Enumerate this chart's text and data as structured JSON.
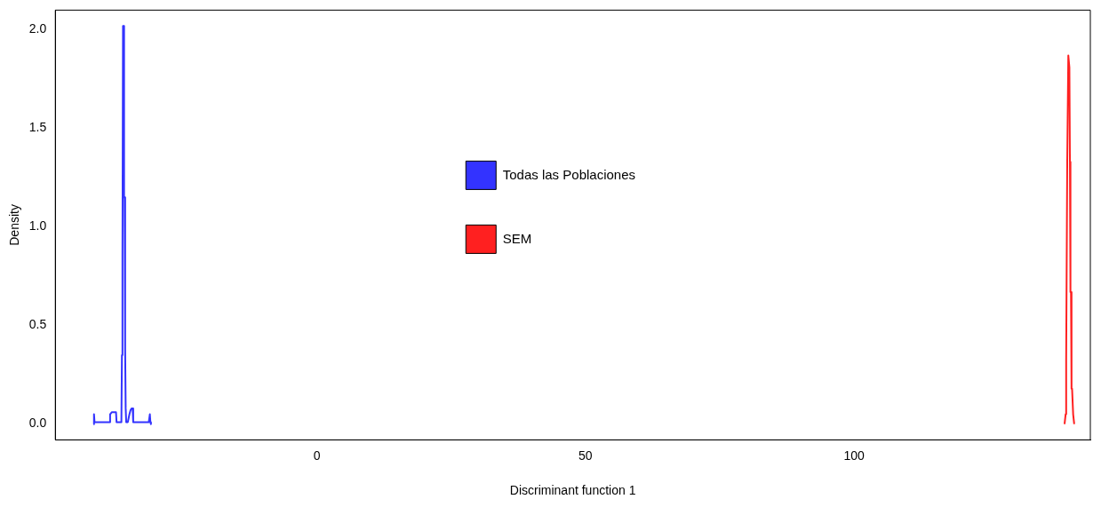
{
  "chart_data": {
    "type": "line",
    "xlabel": "Discriminant function 1",
    "ylabel": "Density",
    "xlim": [
      -48.7,
      144
    ],
    "xticks": [
      0,
      50,
      100
    ],
    "ylim": [
      -0.08,
      2.1
    ],
    "yticks": [
      {
        "value": 0,
        "label": "0.0"
      },
      {
        "value": 0.5,
        "label": "0.5"
      },
      {
        "value": 1,
        "label": "1.0"
      },
      {
        "value": 1.5,
        "label": "1.5"
      },
      {
        "value": 2,
        "label": "2.0"
      }
    ],
    "grid": false,
    "legend": "top",
    "marker": "none",
    "line_style": "solid",
    "series": [
      {
        "name": "Todas las Poblaciones",
        "color": "#3333ff",
        "x": [
          -41.6,
          -41.5,
          -41.4,
          -41.3,
          -38.6,
          -38.5,
          -38.2,
          -37.9,
          -37.6,
          -37.4,
          -37.3,
          -36.4,
          -36.3,
          -36.2,
          -36.1,
          -36.0,
          -35.9,
          -35.8,
          -35.7,
          -35.6,
          -35.5,
          -35.2,
          -34.9,
          -34.7,
          -34.5,
          -34.3,
          -34.2,
          -31.3,
          -31.1,
          -31.0,
          -30.9
        ],
        "values": [
          0,
          0.05,
          0.01,
          0.01,
          0.01,
          0.05,
          0.06,
          0.06,
          0.06,
          0.06,
          0.01,
          0.01,
          0.35,
          0.85,
          2.02,
          2.02,
          1.15,
          1.15,
          0.38,
          0.08,
          0.01,
          0.01,
          0.05,
          0.07,
          0.08,
          0.08,
          0.01,
          0.01,
          0.05,
          0.01,
          0
        ]
      },
      {
        "name": "SEM",
        "color": "#ff2020",
        "x": [
          139.2,
          139.4,
          139.5,
          139.7,
          139.9,
          140.0,
          140.1,
          140.2,
          140.3,
          140.4,
          140.5,
          140.6,
          140.8,
          141.0
        ],
        "values": [
          0,
          0.05,
          0.32,
          1.33,
          1.87,
          1.87,
          1.81,
          1.33,
          0.67,
          0.67,
          0.18,
          0.18,
          0.05,
          0
        ]
      }
    ]
  }
}
